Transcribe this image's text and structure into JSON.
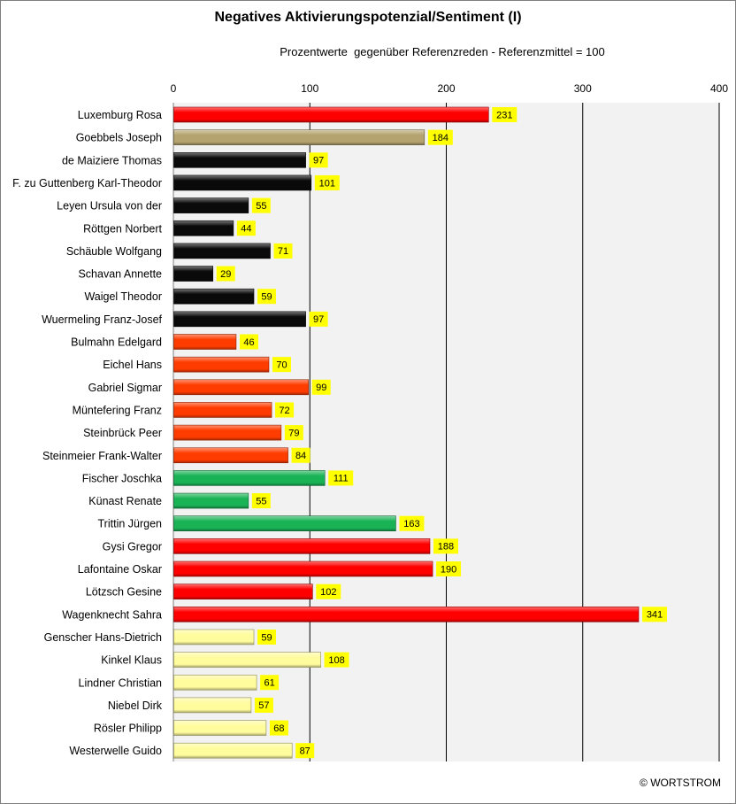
{
  "title": "Negatives Aktivierungspotenzial/Sentiment (I)",
  "subtitle": "Prozentwerte  gegenüber Referenzreden - Referenzmittel = 100",
  "copyright": "© WORTSTROM",
  "colors": {
    "red": "#ff0000",
    "khaki": "#b4a36e",
    "black": "#0a0a0a",
    "orange": "#ff3c00",
    "green": "#19b356",
    "yellow": "#fffc9e",
    "label_bg": "#ffff00",
    "plot_bg": "#f2f2f2"
  },
  "chart_data": {
    "type": "bar",
    "orientation": "horizontal",
    "title": "Negatives Aktivierungspotenzial/Sentiment (I)",
    "subtitle": "Prozentwerte  gegenüber Referenzreden - Referenzmittel = 100",
    "xlim": [
      0,
      400
    ],
    "xticks": [
      0,
      100,
      200,
      300,
      400
    ],
    "xaxis_position": "top",
    "grid": true,
    "data_labels": true,
    "categories": [
      "Luxemburg Rosa",
      "Goebbels Joseph",
      "de Maiziere Thomas",
      "F. zu Guttenberg Karl-Theodor",
      "Leyen Ursula von der",
      "Röttgen Norbert",
      "Schäuble Wolfgang",
      "Schavan Annette",
      "Waigel Theodor",
      "Wuermeling Franz-Josef",
      "Bulmahn Edelgard",
      "Eichel Hans",
      "Gabriel Sigmar",
      "Müntefering Franz",
      "Steinbrück Peer",
      "Steinmeier Frank-Walter",
      "Fischer Joschka",
      "Künast Renate",
      "Trittin Jürgen",
      "Gysi Gregor",
      "Lafontaine Oskar",
      "Lötzsch Gesine",
      "Wagenknecht Sahra",
      "Genscher Hans-Dietrich",
      "Kinkel Klaus",
      "Lindner Christian",
      "Niebel Dirk",
      "Rösler Philipp",
      "Westerwelle Guido"
    ],
    "values": [
      231,
      184,
      97,
      101,
      55,
      44,
      71,
      29,
      59,
      97,
      46,
      70,
      99,
      72,
      79,
      84,
      111,
      55,
      163,
      188,
      190,
      102,
      341,
      59,
      108,
      61,
      57,
      68,
      87
    ],
    "bar_colors": [
      "red",
      "khaki",
      "black",
      "black",
      "black",
      "black",
      "black",
      "black",
      "black",
      "black",
      "orange",
      "orange",
      "orange",
      "orange",
      "orange",
      "orange",
      "green",
      "green",
      "green",
      "red",
      "red",
      "red",
      "red",
      "yellow",
      "yellow",
      "yellow",
      "yellow",
      "yellow",
      "yellow"
    ]
  }
}
